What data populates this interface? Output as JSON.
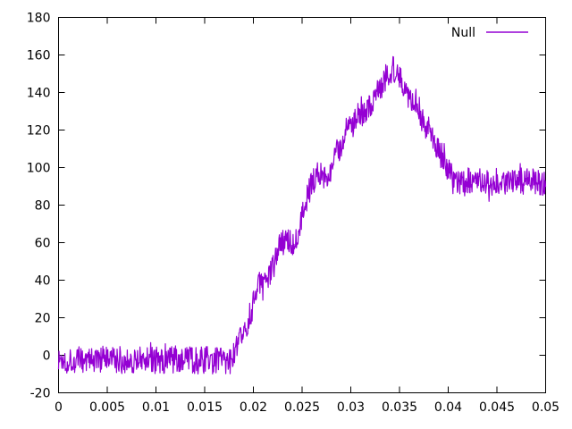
{
  "chart_data": {
    "type": "line",
    "title": "",
    "xlabel": "",
    "ylabel": "",
    "x_range": [
      0,
      0.05
    ],
    "y_range": [
      -20,
      180
    ],
    "grid": false,
    "background_color": "#ffffff",
    "border_color": "#000000",
    "text_color": "#000000",
    "legend": {
      "position": "top-right-inside",
      "entries": [
        {
          "label": "Null",
          "color": "#9400d3"
        }
      ]
    },
    "x_ticks": {
      "values": [
        0,
        0.005,
        0.01,
        0.015,
        0.02,
        0.025,
        0.03,
        0.035,
        0.04,
        0.045,
        0.05
      ],
      "labels": [
        "0",
        "0.005",
        "0.01",
        "0.015",
        "0.02",
        "0.025",
        "0.03",
        "0.035",
        "0.04",
        "0.045",
        "0.05"
      ]
    },
    "y_ticks": {
      "values": [
        -20,
        0,
        20,
        40,
        60,
        80,
        100,
        120,
        140,
        160,
        180
      ],
      "labels": [
        "-20",
        "0",
        "20",
        "40",
        "60",
        "80",
        "100",
        "120",
        "140",
        "160",
        "180"
      ]
    },
    "series": [
      {
        "name": "Null",
        "color": "#9400d3",
        "style": "noisy-line",
        "noise_amplitude": 7.5,
        "outlier_chance": 0.02,
        "outlier_scale": 1.7,
        "samples": 1000,
        "seed": 1337,
        "trend_points": [
          [
            0.0,
            -2.5
          ],
          [
            0.0178,
            -2.5
          ],
          [
            0.0183,
            3
          ],
          [
            0.019,
            12
          ],
          [
            0.0197,
            22
          ],
          [
            0.0203,
            33
          ],
          [
            0.0208,
            40
          ],
          [
            0.0217,
            42
          ],
          [
            0.0223,
            52
          ],
          [
            0.0229,
            60
          ],
          [
            0.0242,
            61
          ],
          [
            0.0249,
            72
          ],
          [
            0.0257,
            88
          ],
          [
            0.0263,
            95
          ],
          [
            0.0277,
            97
          ],
          [
            0.0284,
            105
          ],
          [
            0.0294,
            118
          ],
          [
            0.03,
            123
          ],
          [
            0.0312,
            126
          ],
          [
            0.0319,
            134
          ],
          [
            0.0331,
            143
          ],
          [
            0.0338,
            150
          ],
          [
            0.0344,
            153
          ],
          [
            0.0348,
            152
          ],
          [
            0.0353,
            145
          ],
          [
            0.0359,
            139
          ],
          [
            0.0366,
            137
          ],
          [
            0.0371,
            129
          ],
          [
            0.0378,
            122
          ],
          [
            0.0384,
            116
          ],
          [
            0.0391,
            109
          ],
          [
            0.0398,
            101
          ],
          [
            0.0405,
            93
          ],
          [
            0.0412,
            90
          ],
          [
            0.042,
            92.5
          ],
          [
            0.05,
            92.5
          ]
        ]
      }
    ]
  }
}
